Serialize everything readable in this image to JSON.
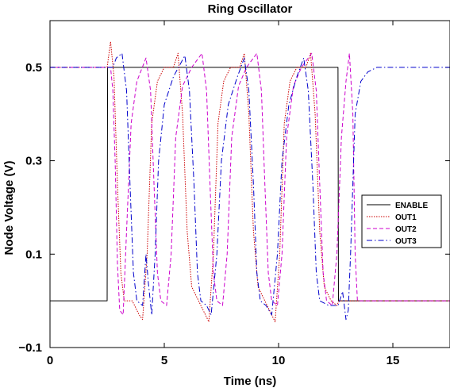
{
  "chart_data": {
    "type": "line",
    "title": "Ring Oscillator",
    "xlabel": "Time (ns)",
    "ylabel": "Node Voltage (V)",
    "xlim": [
      0,
      17.5
    ],
    "ylim": [
      -0.1,
      0.6
    ],
    "xticks": [
      0,
      5,
      10,
      15
    ],
    "yticks": [
      -0.1,
      0.1,
      0.3,
      0.5
    ],
    "xtick_labels": [
      "0",
      "5",
      "10",
      "15"
    ],
    "ytick_labels": [
      "−0.1",
      "0.1",
      "0.3",
      "0.5"
    ],
    "grid": false,
    "legend": {
      "placement": "right",
      "entries": [
        "ENABLE",
        "OUT1",
        "OUT2",
        "OUT3"
      ]
    },
    "series": [
      {
        "name": "ENABLE",
        "color": "#000000",
        "dash": "solid",
        "points": [
          [
            0,
            0.0
          ],
          [
            2.5,
            0.0
          ],
          [
            2.52,
            0.5
          ],
          [
            12.6,
            0.5
          ],
          [
            12.62,
            0.0
          ],
          [
            17.5,
            0.0
          ]
        ]
      },
      {
        "name": "OUT1",
        "color": "#cc0000",
        "dash": "dotted",
        "points": [
          [
            0,
            0.5
          ],
          [
            2.5,
            0.5
          ],
          [
            2.65,
            0.555
          ],
          [
            2.8,
            0.48
          ],
          [
            2.95,
            0.25
          ],
          [
            3.1,
            0.06
          ],
          [
            3.25,
            0.0
          ],
          [
            3.6,
            0.0
          ],
          [
            3.9,
            -0.03
          ],
          [
            4.05,
            -0.04
          ],
          [
            4.25,
            0.1
          ],
          [
            4.45,
            0.38
          ],
          [
            4.7,
            0.47
          ],
          [
            5.0,
            0.5
          ],
          [
            5.4,
            0.5
          ],
          [
            5.6,
            0.53
          ],
          [
            5.8,
            0.4
          ],
          [
            6.0,
            0.15
          ],
          [
            6.2,
            0.03
          ],
          [
            6.5,
            0.0
          ],
          [
            6.8,
            -0.03
          ],
          [
            6.95,
            -0.045
          ],
          [
            7.15,
            0.1
          ],
          [
            7.35,
            0.38
          ],
          [
            7.6,
            0.47
          ],
          [
            7.9,
            0.5
          ],
          [
            8.3,
            0.5
          ],
          [
            8.5,
            0.53
          ],
          [
            8.7,
            0.4
          ],
          [
            8.9,
            0.15
          ],
          [
            9.1,
            0.03
          ],
          [
            9.4,
            0.0
          ],
          [
            9.7,
            -0.03
          ],
          [
            9.85,
            -0.045
          ],
          [
            10.05,
            0.1
          ],
          [
            10.25,
            0.38
          ],
          [
            10.5,
            0.47
          ],
          [
            10.8,
            0.5
          ],
          [
            11.2,
            0.5
          ],
          [
            11.4,
            0.53
          ],
          [
            11.6,
            0.4
          ],
          [
            11.8,
            0.15
          ],
          [
            12.0,
            0.03
          ],
          [
            12.3,
            0.0
          ],
          [
            12.55,
            -0.01
          ],
          [
            12.65,
            0.0
          ],
          [
            17.5,
            0.0
          ]
        ]
      },
      {
        "name": "OUT2",
        "color": "#cc00cc",
        "dash": "dashed",
        "points": [
          [
            0,
            0.5
          ],
          [
            2.65,
            0.5
          ],
          [
            2.75,
            0.45
          ],
          [
            2.85,
            0.3
          ],
          [
            2.95,
            0.08
          ],
          [
            3.05,
            -0.02
          ],
          [
            3.2,
            -0.03
          ],
          [
            3.35,
            0.15
          ],
          [
            3.55,
            0.38
          ],
          [
            3.8,
            0.47
          ],
          [
            4.2,
            0.52
          ],
          [
            4.4,
            0.45
          ],
          [
            4.55,
            0.25
          ],
          [
            4.7,
            0.06
          ],
          [
            4.85,
            0.0
          ],
          [
            5.1,
            -0.01
          ],
          [
            5.3,
            0.1
          ],
          [
            5.5,
            0.35
          ],
          [
            5.8,
            0.46
          ],
          [
            6.2,
            0.5
          ],
          [
            6.65,
            0.53
          ],
          [
            6.85,
            0.45
          ],
          [
            7.0,
            0.25
          ],
          [
            7.15,
            0.06
          ],
          [
            7.3,
            0.0
          ],
          [
            7.55,
            -0.01
          ],
          [
            7.75,
            0.1
          ],
          [
            7.95,
            0.35
          ],
          [
            8.25,
            0.46
          ],
          [
            8.6,
            0.5
          ],
          [
            9.05,
            0.53
          ],
          [
            9.25,
            0.45
          ],
          [
            9.4,
            0.25
          ],
          [
            9.55,
            0.06
          ],
          [
            9.7,
            0.0
          ],
          [
            9.95,
            -0.01
          ],
          [
            10.15,
            0.1
          ],
          [
            10.35,
            0.35
          ],
          [
            10.65,
            0.46
          ],
          [
            11.0,
            0.5
          ],
          [
            11.45,
            0.53
          ],
          [
            11.65,
            0.45
          ],
          [
            11.8,
            0.25
          ],
          [
            11.95,
            0.06
          ],
          [
            12.1,
            0.0
          ],
          [
            12.35,
            -0.01
          ],
          [
            12.55,
            0.1
          ],
          [
            12.75,
            0.35
          ],
          [
            12.95,
            0.47
          ],
          [
            13.1,
            0.53
          ],
          [
            13.25,
            0.4
          ],
          [
            13.35,
            0.1
          ],
          [
            13.45,
            0.0
          ],
          [
            17.5,
            0.0
          ]
        ]
      },
      {
        "name": "OUT3",
        "color": "#0000cc",
        "dash": "dashdot",
        "points": [
          [
            0,
            0.5
          ],
          [
            2.6,
            0.5
          ],
          [
            2.75,
            0.5
          ],
          [
            2.9,
            0.52
          ],
          [
            3.15,
            0.53
          ],
          [
            3.35,
            0.45
          ],
          [
            3.5,
            0.25
          ],
          [
            3.65,
            0.06
          ],
          [
            3.8,
            0.0
          ],
          [
            4.05,
            -0.01
          ],
          [
            4.2,
            0.1
          ],
          [
            4.3,
            0.04
          ],
          [
            4.45,
            -0.03
          ],
          [
            4.6,
            0.1
          ],
          [
            4.75,
            0.3
          ],
          [
            5.0,
            0.42
          ],
          [
            5.4,
            0.48
          ],
          [
            5.9,
            0.525
          ],
          [
            6.1,
            0.45
          ],
          [
            6.3,
            0.25
          ],
          [
            6.45,
            0.06
          ],
          [
            6.6,
            0.0
          ],
          [
            6.85,
            -0.01
          ],
          [
            7.05,
            -0.03
          ],
          [
            7.3,
            0.1
          ],
          [
            7.5,
            0.3
          ],
          [
            7.8,
            0.42
          ],
          [
            8.2,
            0.48
          ],
          [
            8.5,
            0.52
          ],
          [
            8.7,
            0.45
          ],
          [
            8.9,
            0.25
          ],
          [
            9.05,
            0.06
          ],
          [
            9.2,
            0.0
          ],
          [
            9.45,
            -0.01
          ],
          [
            9.7,
            -0.03
          ],
          [
            9.95,
            0.1
          ],
          [
            10.15,
            0.3
          ],
          [
            10.45,
            0.42
          ],
          [
            10.8,
            0.48
          ],
          [
            11.1,
            0.52
          ],
          [
            11.3,
            0.45
          ],
          [
            11.5,
            0.25
          ],
          [
            11.65,
            0.06
          ],
          [
            11.8,
            0.0
          ],
          [
            12.2,
            -0.01
          ],
          [
            12.6,
            -0.01
          ],
          [
            12.8,
            0.02
          ],
          [
            12.95,
            -0.04
          ],
          [
            13.05,
            -0.02
          ],
          [
            13.15,
            0.1
          ],
          [
            13.35,
            0.4
          ],
          [
            13.6,
            0.47
          ],
          [
            13.9,
            0.49
          ],
          [
            14.3,
            0.5
          ],
          [
            17.5,
            0.5
          ]
        ]
      }
    ]
  }
}
